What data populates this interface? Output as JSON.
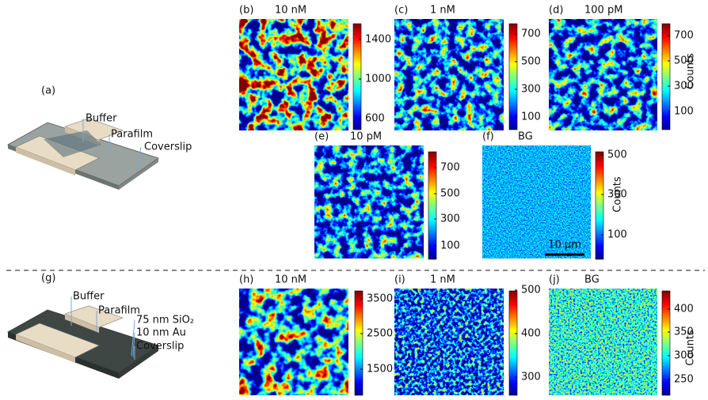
{
  "panel_a": {
    "label": "(a)",
    "callouts": [
      "Buffer",
      "Parafilm",
      "Coverslip"
    ]
  },
  "panel_g": {
    "label": "(g)",
    "callouts": [
      "Buffer",
      "Parafilm",
      "75 nm SiO₂",
      "10 nm Au",
      "Coverslip"
    ]
  },
  "panels": [
    {
      "label": "(b)",
      "title": "10 nM",
      "colorbar_ticks": [
        1400,
        1000,
        600
      ]
    },
    {
      "label": "(c)",
      "title": "1 nM",
      "colorbar_ticks": [
        700,
        500,
        300,
        100
      ]
    },
    {
      "label": "(d)",
      "title": "100 pM",
      "colorbar_ticks": [
        700,
        500,
        300,
        100
      ],
      "colorbar_label": "Counts"
    },
    {
      "label": "(e)",
      "title": "10 pM",
      "colorbar_ticks": [
        700,
        500,
        300,
        100
      ]
    },
    {
      "label": "(f)",
      "title": "BG",
      "colorbar_ticks": [
        500,
        300,
        100
      ],
      "colorbar_label": "Counts",
      "scale_bar": "10 µm"
    },
    {
      "label": "(h)",
      "title": "10 nM",
      "colorbar_ticks": [
        3500,
        2500,
        1500
      ]
    },
    {
      "label": "(i)",
      "title": "1 nM",
      "colorbar_ticks": [
        500,
        400,
        300
      ]
    },
    {
      "label": "(j)",
      "title": "BG",
      "colorbar_ticks": [
        400,
        350,
        300,
        250
      ],
      "colorbar_label": "Counts"
    }
  ]
}
